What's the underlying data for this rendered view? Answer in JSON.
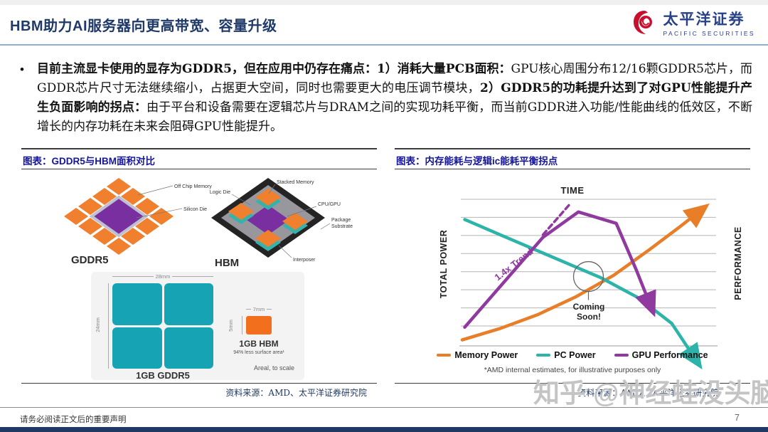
{
  "header": {
    "title": "HBM助力AI服务器向更高带宽、容量升级",
    "logo": {
      "name_cn": "太平洋证券",
      "name_en": "PACIFIC SECURITIES"
    }
  },
  "body": {
    "bullet": "•",
    "b1": "目前主流显卡使用的显存为GDDR5，但在应用中仍存在痛点：1）消耗大量PCB面积：",
    "r1": "GPU核心周围分布12/16颗GDDR5芯片，而GDDR芯片尺寸无法继续缩小，占据更大空间，同时也需要更大的电压调节模块，",
    "b2": "2）GDDR5的功耗提升达到了对GPU性能提升产生负面影响的拐点：",
    "r2": "由于平台和设备需要在逻辑芯片与DRAM之间的实现功耗平衡，而当前GDDR进入功能/性能曲线的低效区，不断增长的内存功耗在未来会阻碍GPU性能提升。"
  },
  "left_panel": {
    "caption": "图表：GDDR5与HBM面积对比",
    "source": "资料来源：AMD、太平洋证券研究院",
    "diagram": {
      "gddr5_label": "GDDR5",
      "hbm_label": "HBM",
      "off_chip_memory": "Off Chip Memory",
      "silicon_die": "Silicon Die",
      "logic_die": "Logic Die",
      "stacked_memory": "Stacked Memory",
      "cpu_gpu": "CPU/GPU",
      "package_substrate": [
        "Package",
        "Substrate"
      ],
      "interposer": "Interposer"
    },
    "area_compare": {
      "gddr5_width": "28mm",
      "gddr5_height": "24mm",
      "gddr5_label": "1GB GDDR5",
      "hbm_width": "7mm",
      "hbm_height": "5mm",
      "hbm_label": "1GB HBM",
      "hbm_note": "94% less surface area¹",
      "scale_note": "Areal, to scale"
    }
  },
  "right_panel": {
    "caption": "图表：内存能耗与逻辑ic能耗平衡拐点",
    "source": "资料来源：AMD、太平洋证券研究院"
  },
  "chart_data": {
    "type": "line",
    "title": "TIME",
    "xlabel": "TIME",
    "ylabel_left": "TOTAL POWER",
    "ylabel_right": "PERFORMANCE",
    "x_range": [
      0,
      100
    ],
    "y_range": [
      0,
      100
    ],
    "grid": true,
    "gridline_count": 8,
    "legend_position": "bottom",
    "footnote": "*AMD internal estimates, for illustrative purposes only",
    "series": [
      {
        "name": "Memory Power",
        "color": "#E87E28",
        "style": "solid",
        "arrow": true,
        "x": [
          0,
          15,
          30,
          45,
          60,
          74,
          86,
          95
        ],
        "y": [
          -11,
          -2,
          9,
          23,
          40,
          60,
          78,
          92
        ]
      },
      {
        "name": "PC Power",
        "color": "#2CB4AA",
        "style": "solid",
        "arrow": true,
        "x": [
          1,
          15,
          35,
          55,
          70,
          83,
          93
        ],
        "y": [
          84,
          72,
          55,
          38,
          22,
          2,
          -28
        ]
      },
      {
        "name": "GPU Performance",
        "color": "#90399E",
        "style": "solid",
        "arrow": true,
        "x": [
          1,
          32,
          46,
          61,
          69,
          75
        ],
        "y": [
          -1,
          70,
          90,
          81,
          44,
          14
        ]
      },
      {
        "name": "1.4x Trend (dashed extension)",
        "color": "#90399E",
        "style": "dashed",
        "arrow": false,
        "x": [
          32,
          43
        ],
        "y": [
          72,
          97
        ]
      }
    ],
    "annotations": [
      {
        "text": "1.4x Trend",
        "color": "#90399E",
        "rotation_deg": -38,
        "x": 14,
        "y": 30
      },
      {
        "text": "Coming Soon!",
        "color": "#222222",
        "x": 50,
        "y": 22
      },
      {
        "type": "circle",
        "x": 50,
        "y": 39,
        "radius": 11
      }
    ]
  },
  "watermark": "知乎 @神经蛙没头脑",
  "footer": {
    "disclaimer": "请务必阅读正文后的重要声明",
    "page": "7"
  }
}
